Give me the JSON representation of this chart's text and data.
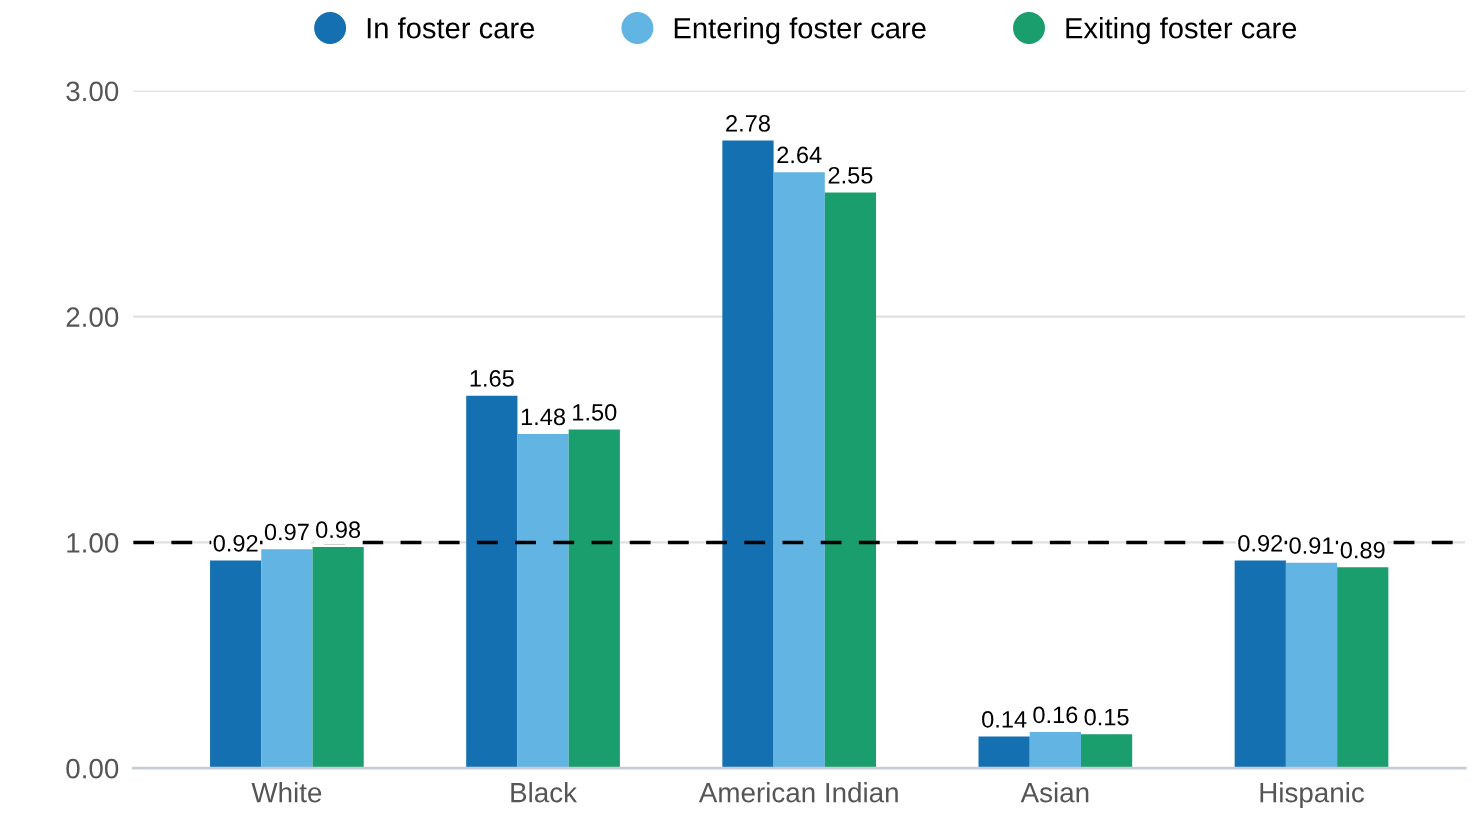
{
  "chart_data": {
    "type": "bar",
    "categories": [
      "White",
      "Black",
      "American Indian",
      "Asian",
      "Hispanic"
    ],
    "series": [
      {
        "name": "In foster care",
        "color": "#1470b0",
        "values": [
          0.92,
          1.65,
          2.78,
          0.14,
          0.92
        ],
        "value_labels": [
          "0.92",
          "1.65",
          "2.78",
          "0.14",
          "0.92"
        ]
      },
      {
        "name": "Entering foster care",
        "color": "#62b4e2",
        "values": [
          0.97,
          1.48,
          2.64,
          0.16,
          0.91
        ],
        "value_labels": [
          "0.97",
          "1.48",
          "2.64",
          "0.16",
          "0.91"
        ]
      },
      {
        "name": "Exiting foster care",
        "color": "#1a9e6e",
        "values": [
          0.98,
          1.5,
          2.55,
          0.15,
          0.89
        ],
        "value_labels": [
          "0.98",
          "1.50",
          "2.55",
          "0.15",
          "0.89"
        ]
      }
    ],
    "ylim": [
      0,
      3
    ],
    "yticks": [
      {
        "value": 0,
        "label": "0.00"
      },
      {
        "value": 1,
        "label": "1.00"
      },
      {
        "value": 2,
        "label": "2.00"
      },
      {
        "value": 3,
        "label": "3.00"
      }
    ],
    "ref_lines": [
      {
        "axis": "y",
        "value": 1,
        "label": null,
        "color": "#000000",
        "line_style": "dashed"
      }
    ],
    "grid": "y",
    "legend": "top"
  }
}
